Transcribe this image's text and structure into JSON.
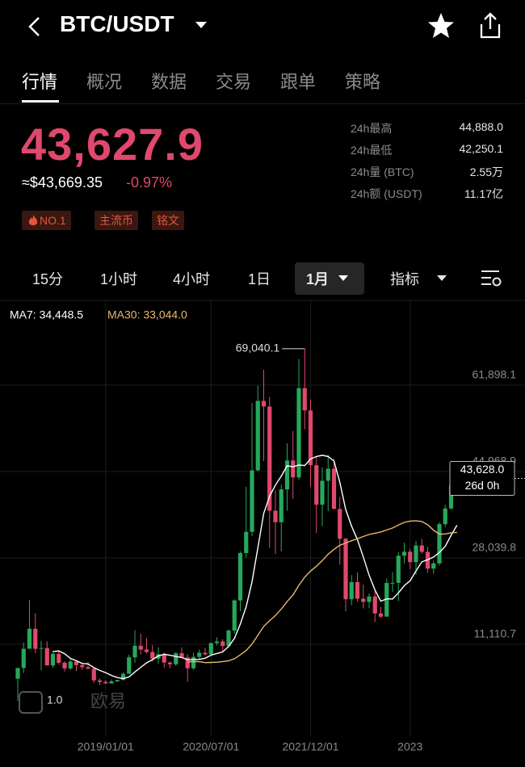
{
  "header": {
    "pair": "BTC/USDT"
  },
  "tabs": [
    "行情",
    "概况",
    "数据",
    "交易",
    "跟单",
    "策略"
  ],
  "ticker": {
    "price": "43,627.9",
    "usd": "≈$43,669.35",
    "change": "-0.97%",
    "tags": [
      "NO.1",
      "主流币",
      "铭文"
    ],
    "stats": [
      {
        "label": "24h最高",
        "value": "44,888.0"
      },
      {
        "label": "24h最低",
        "value": "42,250.1"
      },
      {
        "label": "24h量 (BTC)",
        "value": "2.55万"
      },
      {
        "label": "24h额 (USDT)",
        "value": "11.17亿"
      }
    ]
  },
  "intervals": [
    "15分",
    "1小时",
    "4小时",
    "1日",
    "1月"
  ],
  "indicator": "指标",
  "chart_data": {
    "type": "candlestick",
    "categories": [
      null,
      null,
      null,
      null,
      null,
      null,
      null,
      null,
      null,
      null,
      null,
      null,
      null,
      null,
      null,
      "2019/01/01",
      null,
      null,
      null,
      null,
      null,
      null,
      null,
      null,
      null,
      null,
      null,
      null,
      null,
      null,
      null,
      null,
      null,
      "2020/07/01",
      null,
      null,
      null,
      null,
      null,
      null,
      null,
      null,
      null,
      null,
      null,
      null,
      null,
      null,
      null,
      null,
      "2021/12/01",
      null,
      null,
      null,
      null,
      null,
      null,
      null,
      null,
      null,
      null,
      null,
      null,
      null,
      null,
      null,
      null,
      "2023",
      null,
      null,
      null,
      null,
      null,
      null,
      null,
      null
    ],
    "open": [
      4360,
      6470,
      10230,
      14150,
      10220,
      10380,
      6970,
      9240,
      7490,
      6390,
      7730,
      7020,
      6620,
      6320,
      4040,
      3740,
      3460,
      3830,
      4100,
      5320,
      8560,
      10820,
      10080,
      9600,
      8290,
      9150,
      7540,
      7190,
      9350,
      8540,
      6410,
      8630,
      9450,
      9140,
      11350,
      11660,
      10780,
      13800,
      19710,
      28990,
      33140,
      45200,
      58800,
      57700,
      37300,
      35040,
      41460,
      47130,
      43820,
      61300,
      56950,
      46210,
      38470,
      43160,
      45510,
      37630,
      31790,
      19940,
      23290,
      20050,
      19420,
      20490,
      17160,
      16540,
      23130,
      23150,
      28470,
      29250,
      27210,
      30470,
      29230,
      25940,
      26970,
      34650,
      37720,
      42280
    ],
    "high": [
      6470,
      11500,
      19800,
      17200,
      11800,
      11700,
      9750,
      9990,
      7760,
      8490,
      7760,
      7400,
      7680,
      6550,
      4390,
      4100,
      4200,
      4140,
      5600,
      9100,
      13880,
      13200,
      12330,
      10950,
      10540,
      9520,
      7750,
      9580,
      10500,
      9190,
      9460,
      10080,
      10390,
      11450,
      12480,
      12100,
      14000,
      19900,
      29300,
      41950,
      58350,
      61780,
      64900,
      59600,
      41300,
      42400,
      50500,
      52900,
      67000,
      69040.1,
      59100,
      47990,
      45800,
      48200,
      47450,
      40000,
      31990,
      24670,
      25200,
      22800,
      21100,
      21480,
      18390,
      23960,
      25250,
      29200,
      31000,
      29820,
      31390,
      31800,
      30200,
      27480,
      35000,
      38420,
      44700,
      45000
    ],
    "low": [
      1.0,
      5500,
      10800,
      9400,
      6000,
      7300,
      6500,
      7060,
      5780,
      6070,
      5880,
      6100,
      6200,
      3500,
      3120,
      3350,
      3370,
      3700,
      4080,
      5320,
      7500,
      9100,
      9330,
      7700,
      7300,
      6520,
      6430,
      6870,
      8450,
      3800,
      6150,
      8100,
      8900,
      8900,
      10900,
      9820,
      10400,
      13200,
      17600,
      28100,
      32300,
      45000,
      47000,
      30000,
      28800,
      29300,
      37300,
      39600,
      43300,
      53250,
      42000,
      32900,
      34300,
      37200,
      37700,
      26700,
      17600,
      18780,
      19520,
      18150,
      18180,
      15480,
      16260,
      16500,
      21350,
      19550,
      26940,
      25800,
      24750,
      28860,
      25160,
      24920,
      26550,
      34100,
      37600,
      40800
    ],
    "close": [
      6470,
      10230,
      14150,
      10220,
      10380,
      6970,
      9240,
      7490,
      6390,
      7730,
      7020,
      6620,
      6320,
      4040,
      3740,
      3460,
      3830,
      4100,
      5320,
      8560,
      10820,
      10080,
      9600,
      8290,
      9150,
      7540,
      7190,
      9350,
      8540,
      6410,
      8630,
      9450,
      9140,
      11350,
      11660,
      10780,
      13800,
      19710,
      28990,
      33140,
      45200,
      58800,
      57700,
      37300,
      35040,
      41460,
      47130,
      43820,
      61300,
      56950,
      46210,
      38470,
      43160,
      45510,
      37630,
      31790,
      19940,
      23290,
      20050,
      19420,
      20490,
      17160,
      16540,
      23130,
      23150,
      28470,
      29250,
      27210,
      30470,
      29230,
      25940,
      26970,
      34650,
      37720,
      42280,
      43628.0
    ],
    "up_color": "#26a85a",
    "down_color": "#e0486d",
    "series": [
      {
        "name": "MA7",
        "label": "MA7: 34,448.5",
        "color": "#ffffff",
        "values": [
          null,
          null,
          null,
          null,
          null,
          null,
          9666,
          9811,
          9263,
          8346,
          7889,
          7351,
          7259,
          6516,
          5980,
          5561,
          5004,
          4587,
          4401,
          4721,
          5690,
          6596,
          7473,
          8110,
          8831,
          9149,
          8953,
          8743,
          8523,
          8067,
          8116,
          8159,
          8387,
          8981,
          9311,
          9631,
          10687,
          12270,
          15061,
          18490,
          23326,
          30060,
          36763,
          40120,
          42310,
          44091,
          46090,
          45893,
          46250,
          46143,
          47416,
          47906,
          48149,
          47917,
          47033,
          42817,
          37530,
          34256,
          31624,
          28233,
          24659,
          21734,
          19556,
          20011,
          19991,
          21194,
          22599,
          23559,
          25460,
          27273,
          27674,
          28220,
          29103,
          30313,
          32466,
          34448.5
        ]
      },
      {
        "name": "MA30",
        "label": "MA30: 33,044.0",
        "color": "#e8b86d",
        "values": [
          null,
          null,
          null,
          null,
          null,
          null,
          null,
          null,
          null,
          null,
          null,
          null,
          null,
          null,
          null,
          null,
          null,
          null,
          null,
          null,
          null,
          null,
          null,
          null,
          null,
          null,
          null,
          null,
          null,
          7642,
          7714,
          7688,
          7521,
          7558,
          7601,
          7728,
          7880,
          8287,
          9041,
          9888,
          11160,
          12900,
          14612,
          15721,
          16764,
          18031,
          19474,
          20798,
          22664,
          24277,
          25457,
          26403,
          27522,
          28763,
          29712,
          30520,
          30945,
          31410,
          31794,
          32227,
          32623,
          32880,
          33126,
          33519,
          33902,
          34492,
          35007,
          35257,
          35306,
          35176,
          34534,
          33473,
          32704,
          32718,
          32960,
          33044.0
        ]
      }
    ],
    "ylim": [
      -6767,
      75505
    ],
    "yticks": [
      {
        "value": 11110.7,
        "label": "11,110.7"
      },
      {
        "value": 28039.8,
        "label": "28,039.8"
      },
      {
        "value": 44968.9,
        "label": "44,968.9"
      },
      {
        "value": 61898.1,
        "label": "61,898.1"
      }
    ],
    "grid": true,
    "max_label": "69,040.1",
    "min_label": "1.0",
    "last_price_label": "43,628.0",
    "countdown": "26d 0h",
    "watermark": "欧易"
  }
}
